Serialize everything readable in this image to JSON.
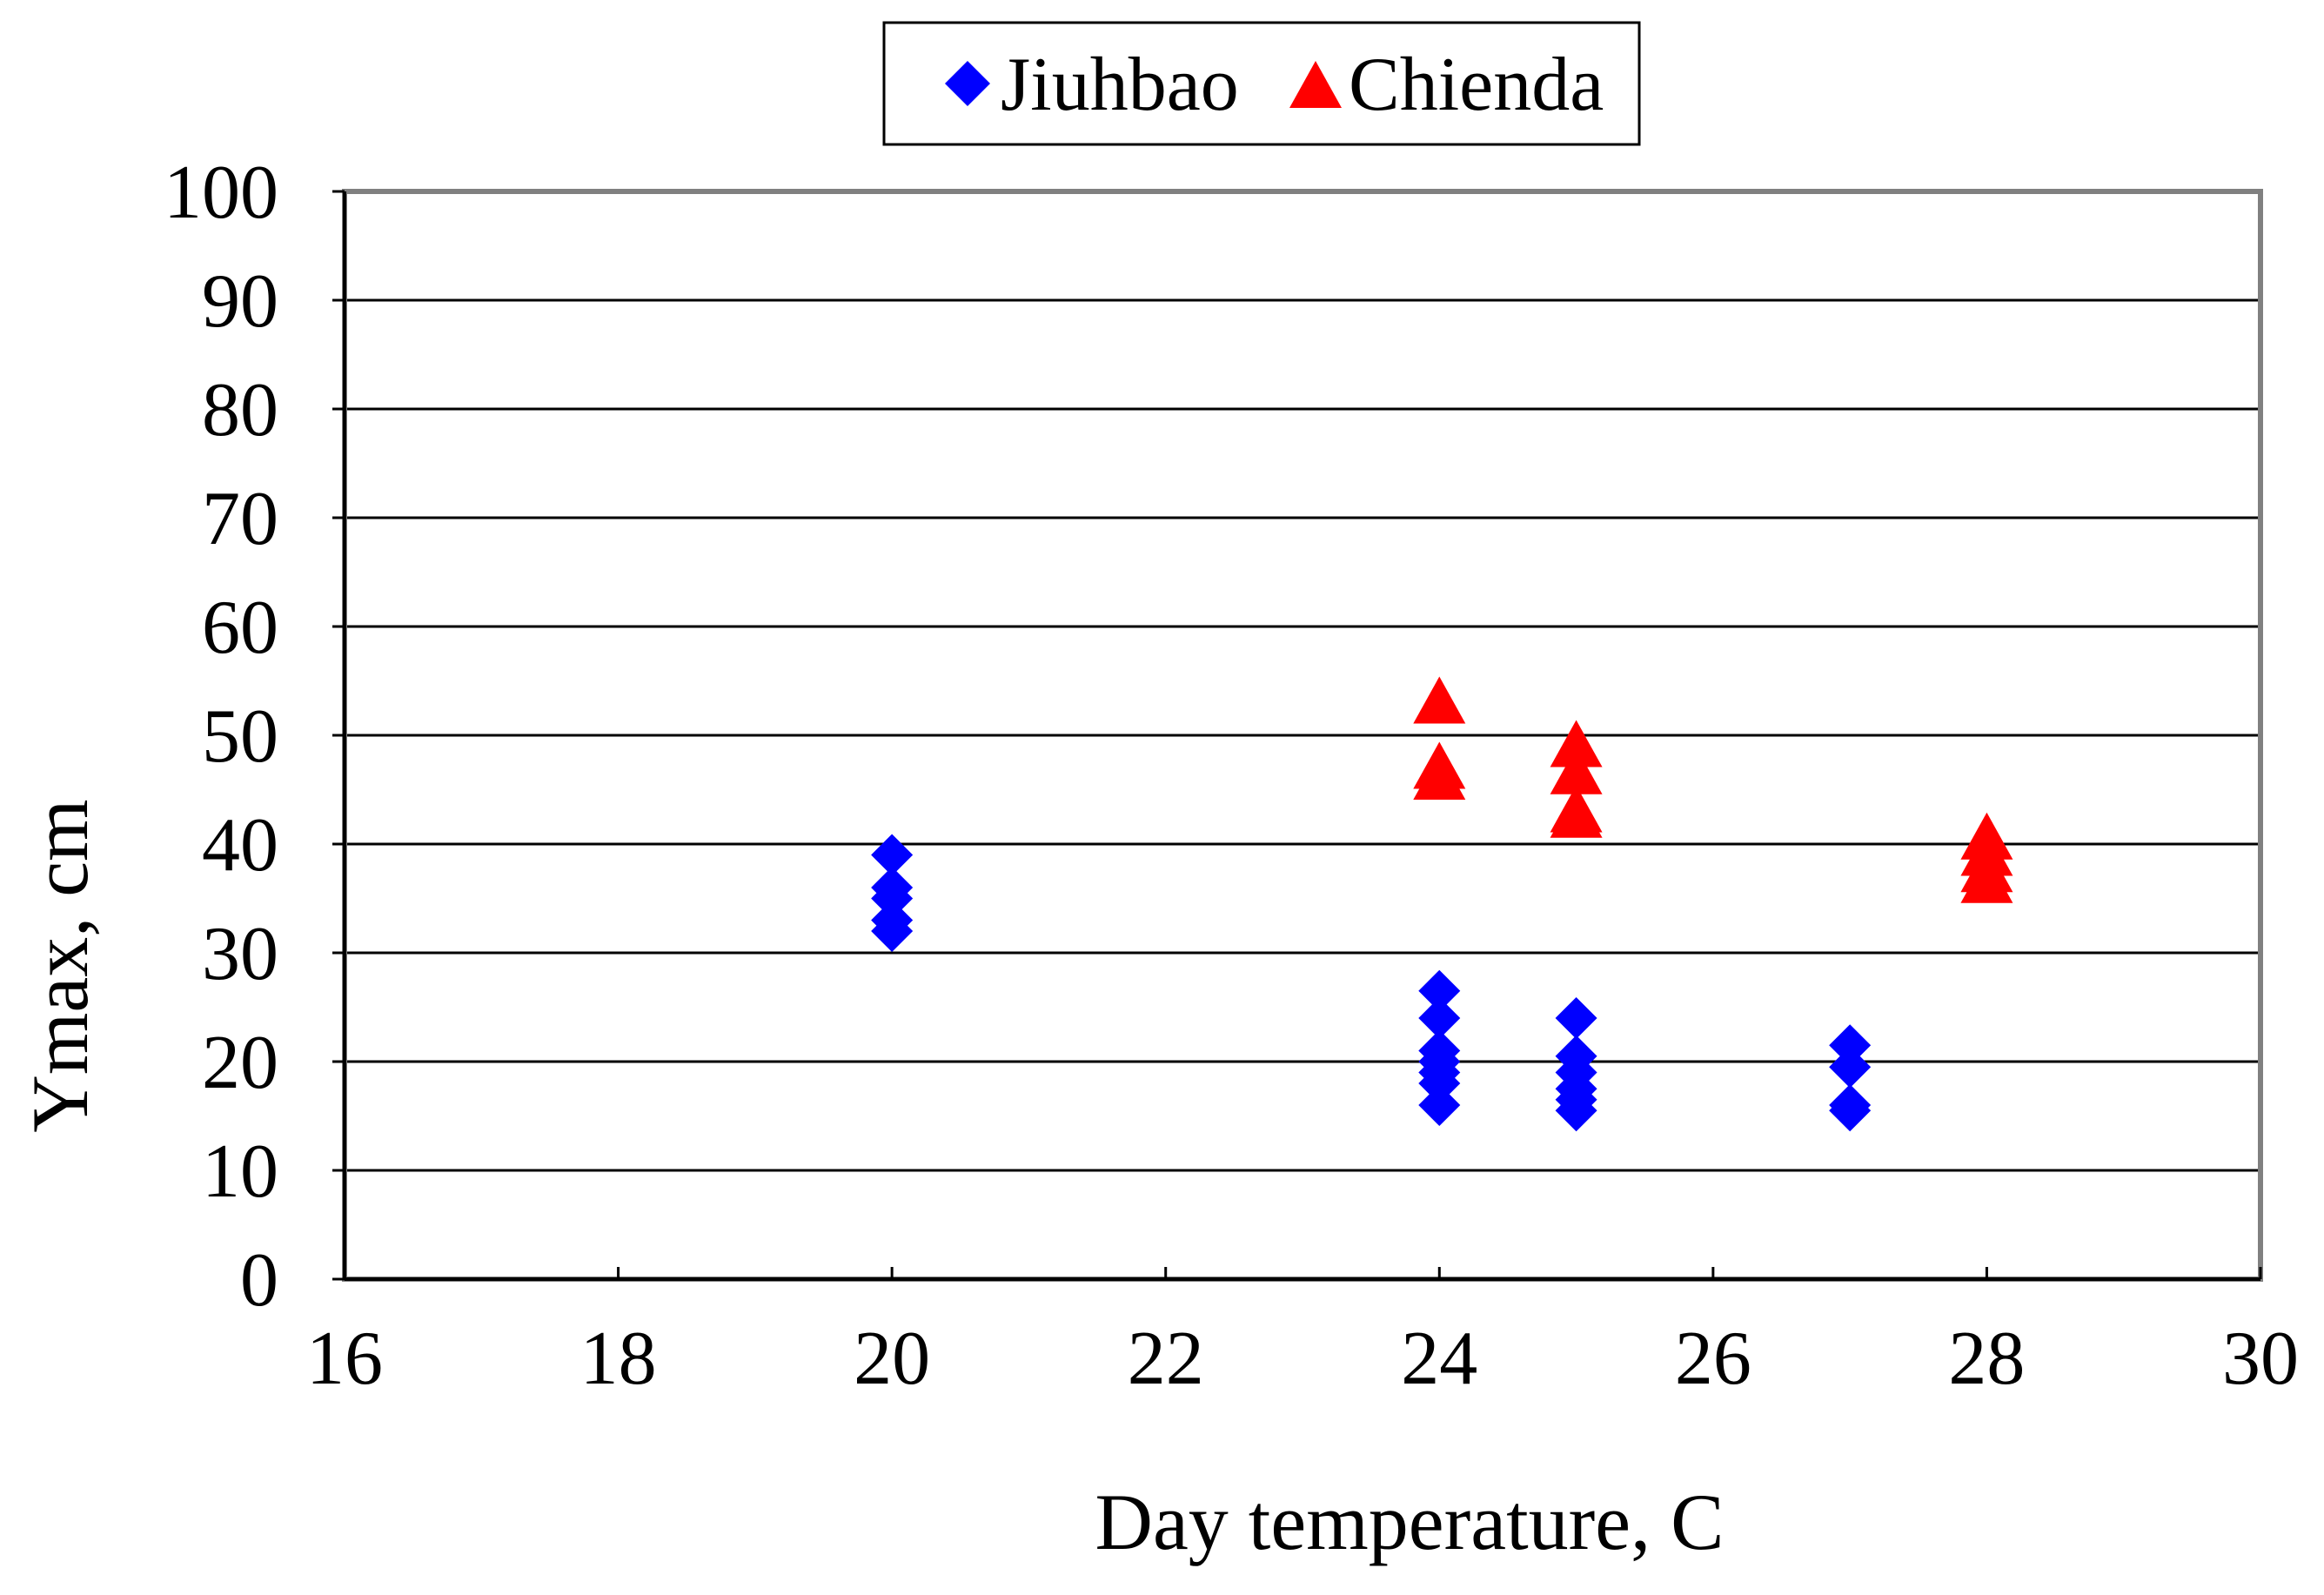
{
  "chart_data": {
    "type": "scatter",
    "title": "",
    "xlabel": "Day temperature, C",
    "ylabel": "Ymax, cm",
    "xlim": [
      16,
      30
    ],
    "ylim": [
      0,
      100
    ],
    "xticks": [
      "16",
      "18",
      "20",
      "22",
      "24",
      "26",
      "28",
      "30"
    ],
    "yticks": [
      "0",
      "10",
      "20",
      "30",
      "40",
      "50",
      "60",
      "70",
      "80",
      "90",
      "100"
    ],
    "grid": "horizontal",
    "legend_position": "top-center",
    "series": [
      {
        "name": "Jiuhbao",
        "marker": "diamond",
        "color": "#0000ff",
        "points": [
          {
            "x": 20,
            "y": 39
          },
          {
            "x": 20,
            "y": 36
          },
          {
            "x": 20,
            "y": 35
          },
          {
            "x": 20,
            "y": 33
          },
          {
            "x": 20,
            "y": 32
          },
          {
            "x": 24,
            "y": 26.5
          },
          {
            "x": 24,
            "y": 24
          },
          {
            "x": 24,
            "y": 21
          },
          {
            "x": 24,
            "y": 20
          },
          {
            "x": 24,
            "y": 19
          },
          {
            "x": 24,
            "y": 18
          },
          {
            "x": 24,
            "y": 16
          },
          {
            "x": 25,
            "y": 24
          },
          {
            "x": 25,
            "y": 20.5
          },
          {
            "x": 25,
            "y": 19
          },
          {
            "x": 25,
            "y": 17.5
          },
          {
            "x": 25,
            "y": 16.5
          },
          {
            "x": 25,
            "y": 15.5
          },
          {
            "x": 27,
            "y": 21.5
          },
          {
            "x": 27,
            "y": 19.5
          },
          {
            "x": 27,
            "y": 16
          },
          {
            "x": 27,
            "y": 15.5
          }
        ]
      },
      {
        "name": "Chienda",
        "marker": "triangle",
        "color": "#ff0000",
        "points": [
          {
            "x": 24,
            "y": 53
          },
          {
            "x": 24,
            "y": 47
          },
          {
            "x": 24,
            "y": 46
          },
          {
            "x": 25,
            "y": 49
          },
          {
            "x": 25,
            "y": 46.5
          },
          {
            "x": 25,
            "y": 43
          },
          {
            "x": 25,
            "y": 42.5
          },
          {
            "x": 28,
            "y": 40.5
          },
          {
            "x": 28,
            "y": 39
          },
          {
            "x": 28,
            "y": 37.5
          },
          {
            "x": 28,
            "y": 36.5
          }
        ]
      }
    ]
  }
}
